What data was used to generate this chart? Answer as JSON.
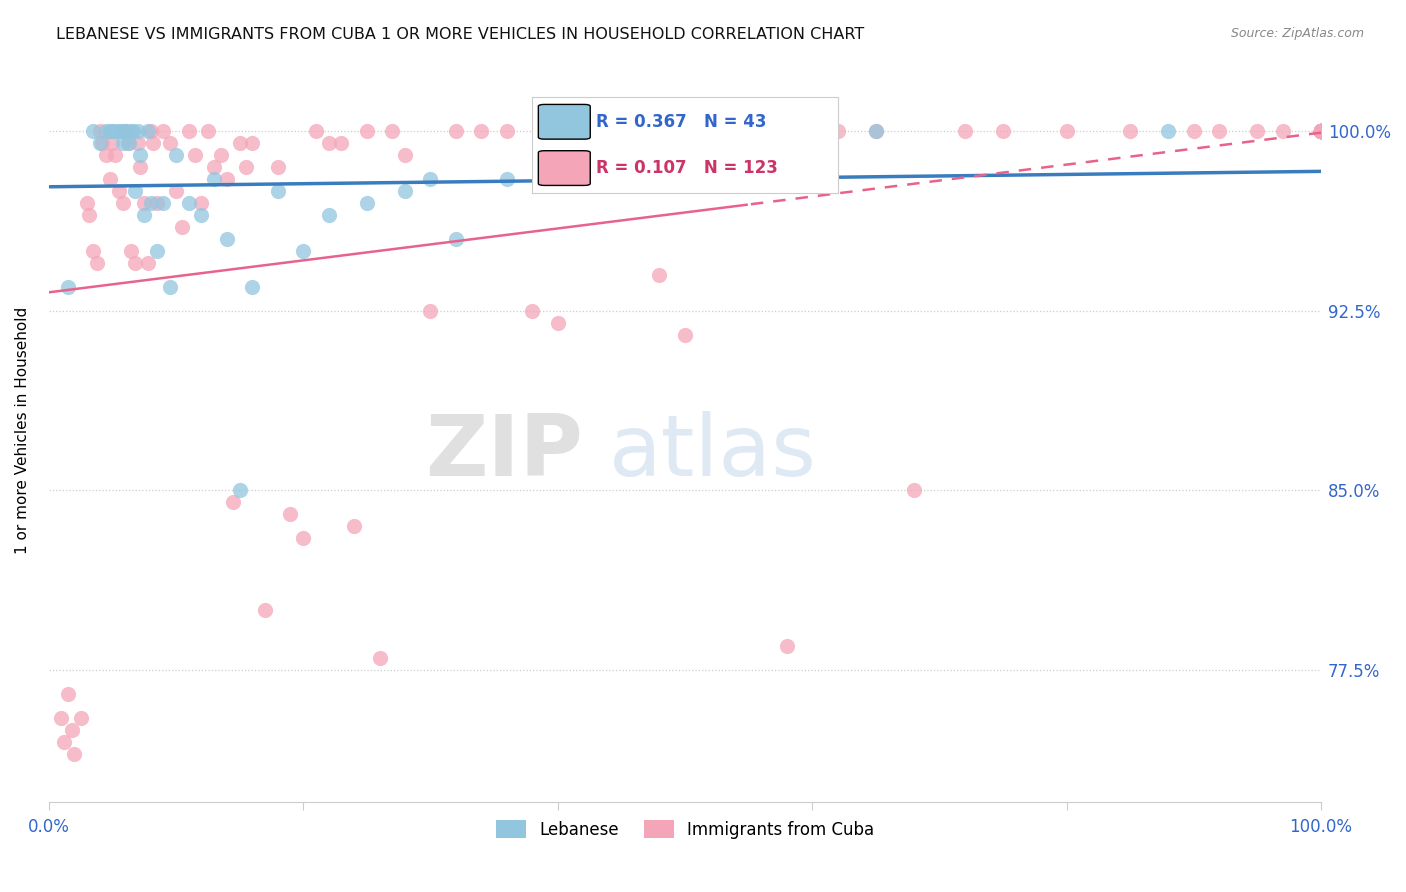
{
  "title": "LEBANESE VS IMMIGRANTS FROM CUBA 1 OR MORE VEHICLES IN HOUSEHOLD CORRELATION CHART",
  "source": "Source: ZipAtlas.com",
  "ylabel": "1 or more Vehicles in Household",
  "yticks": [
    77.5,
    85.0,
    92.5,
    100.0
  ],
  "ytick_labels": [
    "77.5%",
    "85.0%",
    "92.5%",
    "100.0%"
  ],
  "ylim": [
    72.0,
    103.0
  ],
  "xlim": [
    0.0,
    100.0
  ],
  "legend_r_blue": "R = 0.367",
  "legend_n_blue": "N = 43",
  "legend_r_pink": "R = 0.107",
  "legend_n_pink": "N = 123",
  "blue_color": "#92c5de",
  "pink_color": "#f4a6b8",
  "trendline_blue_color": "#3a7dbf",
  "trendline_pink_color": "#e8638c",
  "watermark_zip": "ZIP",
  "watermark_atlas": "atlas",
  "blue_scatter_x": [
    1.5,
    3.5,
    4.0,
    4.5,
    4.8,
    5.0,
    5.2,
    5.5,
    5.7,
    5.8,
    6.0,
    6.1,
    6.3,
    6.5,
    6.6,
    6.8,
    7.0,
    7.2,
    7.5,
    7.8,
    8.0,
    8.5,
    9.0,
    9.5,
    10.0,
    11.0,
    12.0,
    13.0,
    14.0,
    15.0,
    16.0,
    18.0,
    20.0,
    22.0,
    25.0,
    28.0,
    30.0,
    32.0,
    36.0,
    40.0,
    55.0,
    65.0,
    88.0
  ],
  "blue_scatter_y": [
    93.5,
    100.0,
    99.5,
    100.0,
    100.0,
    100.0,
    100.0,
    100.0,
    100.0,
    99.5,
    100.0,
    100.0,
    99.5,
    100.0,
    100.0,
    97.5,
    100.0,
    99.0,
    96.5,
    100.0,
    97.0,
    95.0,
    97.0,
    93.5,
    99.0,
    97.0,
    96.5,
    98.0,
    95.5,
    85.0,
    93.5,
    97.5,
    95.0,
    96.5,
    97.0,
    97.5,
    98.0,
    95.5,
    98.0,
    98.5,
    99.5,
    100.0,
    100.0
  ],
  "pink_scatter_x": [
    1.0,
    1.2,
    1.5,
    1.8,
    2.0,
    2.5,
    3.0,
    3.2,
    3.5,
    3.8,
    4.0,
    4.2,
    4.5,
    4.8,
    5.0,
    5.2,
    5.5,
    5.8,
    6.0,
    6.2,
    6.5,
    6.8,
    7.0,
    7.2,
    7.5,
    7.8,
    8.0,
    8.2,
    8.5,
    9.0,
    9.5,
    10.0,
    10.5,
    11.0,
    11.5,
    12.0,
    12.5,
    13.0,
    13.5,
    14.0,
    14.5,
    15.0,
    15.5,
    16.0,
    17.0,
    18.0,
    19.0,
    20.0,
    21.0,
    22.0,
    23.0,
    24.0,
    25.0,
    26.0,
    27.0,
    28.0,
    30.0,
    32.0,
    34.0,
    36.0,
    38.0,
    40.0,
    42.0,
    45.0,
    48.0,
    50.0,
    52.0,
    55.0,
    58.0,
    62.0,
    65.0,
    68.0,
    72.0,
    75.0,
    80.0,
    85.0,
    90.0,
    92.0,
    95.0,
    97.0,
    100.0,
    100.0,
    100.0,
    100.0,
    100.0,
    100.0,
    100.0,
    100.0,
    100.0,
    100.0,
    100.0,
    100.0,
    100.0,
    100.0,
    100.0,
    100.0,
    100.0,
    100.0,
    100.0,
    100.0,
    100.0,
    100.0,
    100.0,
    100.0,
    100.0,
    100.0,
    100.0,
    100.0,
    100.0,
    100.0,
    100.0,
    100.0,
    100.0,
    100.0,
    100.0,
    100.0,
    100.0,
    100.0,
    100.0,
    100.0,
    100.0,
    100.0,
    100.0
  ],
  "pink_scatter_y": [
    75.5,
    74.5,
    76.5,
    75.0,
    74.0,
    75.5,
    97.0,
    96.5,
    95.0,
    94.5,
    100.0,
    99.5,
    99.0,
    98.0,
    99.5,
    99.0,
    97.5,
    97.0,
    100.0,
    99.5,
    95.0,
    94.5,
    99.5,
    98.5,
    97.0,
    94.5,
    100.0,
    99.5,
    97.0,
    100.0,
    99.5,
    97.5,
    96.0,
    100.0,
    99.0,
    97.0,
    100.0,
    98.5,
    99.0,
    98.0,
    84.5,
    99.5,
    98.5,
    99.5,
    80.0,
    98.5,
    84.0,
    83.0,
    100.0,
    99.5,
    99.5,
    83.5,
    100.0,
    78.0,
    100.0,
    99.0,
    92.5,
    100.0,
    100.0,
    100.0,
    92.5,
    92.0,
    100.0,
    100.0,
    94.0,
    91.5,
    100.0,
    100.0,
    78.5,
    100.0,
    100.0,
    85.0,
    100.0,
    100.0,
    100.0,
    100.0,
    100.0,
    100.0,
    100.0,
    100.0,
    100.0,
    100.0,
    100.0,
    100.0,
    100.0,
    100.0,
    100.0,
    100.0,
    100.0,
    100.0,
    100.0,
    100.0,
    100.0,
    100.0,
    100.0,
    100.0,
    100.0,
    100.0,
    100.0,
    100.0,
    100.0,
    100.0,
    100.0,
    100.0,
    100.0,
    100.0,
    100.0,
    100.0,
    100.0,
    100.0,
    100.0,
    100.0,
    100.0,
    100.0,
    100.0,
    100.0,
    100.0,
    100.0,
    100.0,
    100.0,
    100.0,
    100.0,
    100.0
  ]
}
